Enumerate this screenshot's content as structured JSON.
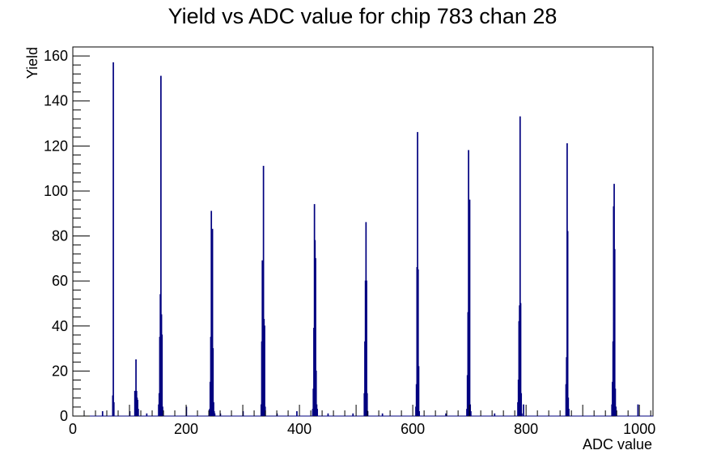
{
  "chart_data": {
    "type": "histogram",
    "title": "Yield vs ADC value for chip 783 chan 28",
    "xlabel": "ADC value",
    "ylabel": "Yield",
    "xlim": [
      0,
      1024
    ],
    "ylim": [
      0,
      164
    ],
    "x_ticks": [
      0,
      200,
      400,
      600,
      800,
      1000
    ],
    "y_ticks": [
      0,
      20,
      40,
      60,
      80,
      100,
      120,
      140,
      160
    ],
    "grid": false,
    "legend": "none",
    "line_color": "#00007f",
    "bin_width": 1,
    "bins": [
      [
        52,
        2
      ],
      [
        70,
        9
      ],
      [
        71,
        157
      ],
      [
        72,
        6
      ],
      [
        100,
        2
      ],
      [
        109,
        11
      ],
      [
        110,
        6
      ],
      [
        111,
        25
      ],
      [
        112,
        11
      ],
      [
        113,
        8
      ],
      [
        114,
        7
      ],
      [
        115,
        3
      ],
      [
        130,
        1
      ],
      [
        151,
        5
      ],
      [
        152,
        10
      ],
      [
        153,
        35
      ],
      [
        154,
        54
      ],
      [
        155,
        151
      ],
      [
        156,
        45
      ],
      [
        157,
        36
      ],
      [
        158,
        4
      ],
      [
        200,
        4
      ],
      [
        241,
        3
      ],
      [
        242,
        15
      ],
      [
        243,
        35
      ],
      [
        244,
        91
      ],
      [
        245,
        63
      ],
      [
        246,
        83
      ],
      [
        247,
        30
      ],
      [
        248,
        6
      ],
      [
        249,
        2
      ],
      [
        250,
        1
      ],
      [
        260,
        1
      ],
      [
        300,
        2
      ],
      [
        332,
        5
      ],
      [
        333,
        33
      ],
      [
        334,
        69
      ],
      [
        335,
        44
      ],
      [
        336,
        111
      ],
      [
        337,
        43
      ],
      [
        338,
        40
      ],
      [
        339,
        4
      ],
      [
        360,
        1
      ],
      [
        395,
        2
      ],
      [
        423,
        3
      ],
      [
        424,
        12
      ],
      [
        425,
        39
      ],
      [
        426,
        94
      ],
      [
        427,
        78
      ],
      [
        428,
        70
      ],
      [
        429,
        20
      ],
      [
        430,
        5
      ],
      [
        431,
        3
      ],
      [
        450,
        1
      ],
      [
        494,
        1
      ],
      [
        514,
        10
      ],
      [
        515,
        33
      ],
      [
        516,
        60
      ],
      [
        517,
        86
      ],
      [
        518,
        60
      ],
      [
        519,
        10
      ],
      [
        520,
        2
      ],
      [
        546,
        1
      ],
      [
        605,
        4
      ],
      [
        606,
        14
      ],
      [
        607,
        66
      ],
      [
        608,
        126
      ],
      [
        609,
        65
      ],
      [
        610,
        22
      ],
      [
        611,
        2
      ],
      [
        658,
        1
      ],
      [
        695,
        3
      ],
      [
        696,
        18
      ],
      [
        697,
        46
      ],
      [
        698,
        118
      ],
      [
        699,
        11
      ],
      [
        700,
        96
      ],
      [
        701,
        5
      ],
      [
        702,
        2
      ],
      [
        744,
        1
      ],
      [
        785,
        6
      ],
      [
        786,
        16
      ],
      [
        787,
        42
      ],
      [
        788,
        49
      ],
      [
        789,
        133
      ],
      [
        790,
        50
      ],
      [
        791,
        10
      ],
      [
        792,
        1
      ],
      [
        795,
        5
      ],
      [
        870,
        14
      ],
      [
        871,
        26
      ],
      [
        872,
        121
      ],
      [
        873,
        82
      ],
      [
        874,
        8
      ],
      [
        875,
        3
      ],
      [
        951,
        5
      ],
      [
        952,
        15
      ],
      [
        953,
        33
      ],
      [
        954,
        93
      ],
      [
        955,
        103
      ],
      [
        956,
        74
      ],
      [
        957,
        12
      ],
      [
        958,
        4
      ],
      [
        997,
        5
      ]
    ]
  }
}
